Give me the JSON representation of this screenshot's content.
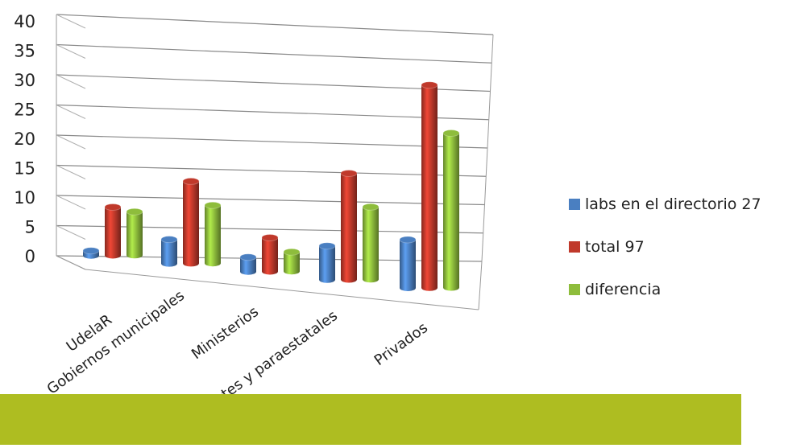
{
  "chart_data": {
    "type": "bar",
    "title": "",
    "xlabel": "",
    "ylabel": "",
    "ylim": [
      0,
      40
    ],
    "yticks": [
      "0",
      "5",
      "10",
      "15",
      "20",
      "25",
      "30",
      "35",
      "40"
    ],
    "grid": true,
    "legend_position": "right",
    "three_d": true,
    "categories": [
      "UdelaR",
      "Gobiernos municipales",
      "Ministerios",
      "Entes y paraestatales",
      "Privados"
    ],
    "series": [
      {
        "name": "labs en el directorio 27",
        "color": "#4a7fc1",
        "values": [
          1,
          5,
          3,
          7,
          10
        ]
      },
      {
        "name": "total 97",
        "color": "#c0392b",
        "values": [
          10,
          17,
          7,
          22,
          42
        ]
      },
      {
        "name": "diferencia",
        "color": "#8ebd3c",
        "values": [
          9,
          12,
          4,
          15,
          32
        ]
      }
    ]
  }
}
